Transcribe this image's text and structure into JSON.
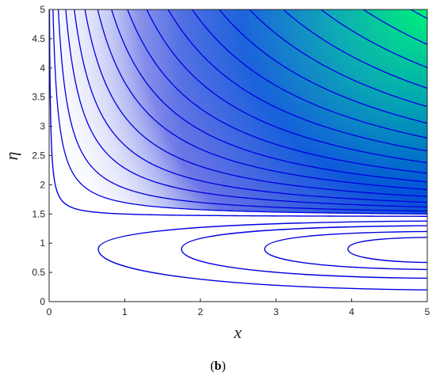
{
  "chart_data": {
    "type": "contour",
    "xlabel": "x",
    "ylabel": "η",
    "xlim": [
      0,
      5
    ],
    "ylim": [
      0,
      5
    ],
    "x_ticks": [
      "0",
      "1",
      "2",
      "3",
      "4",
      "5"
    ],
    "y_ticks": [
      "0",
      "0.5",
      "1",
      "1.5",
      "2",
      "2.5",
      "3",
      "3.5",
      "4",
      "4.5",
      "5"
    ],
    "grid": false,
    "line_color": "#0000e0",
    "closed_contours": [
      {
        "x_min": 0.65,
        "center_eta": 0.9,
        "eta_at_x5": [
          0.2,
          1.38
        ]
      },
      {
        "x_min": 1.75,
        "center_eta": 0.9,
        "eta_at_x5": [
          0.4,
          1.3
        ]
      },
      {
        "x_min": 2.85,
        "center_eta": 0.9,
        "eta_at_x5": [
          0.55,
          1.2
        ]
      },
      {
        "x_min": 3.95,
        "center_eta": 0.9,
        "eta_at_x5": [
          0.67,
          1.1
        ]
      }
    ],
    "separatrix": {
      "eta": 1.45,
      "x_vertical": 0.0
    },
    "open_contour_start_eta_at_x5": [
      1.5,
      1.55,
      1.62,
      1.7,
      1.8,
      1.92,
      2.05,
      2.2,
      2.38
    ]
  },
  "figure": {
    "caption_open": "(",
    "caption_label": "b",
    "caption_close": ")"
  }
}
